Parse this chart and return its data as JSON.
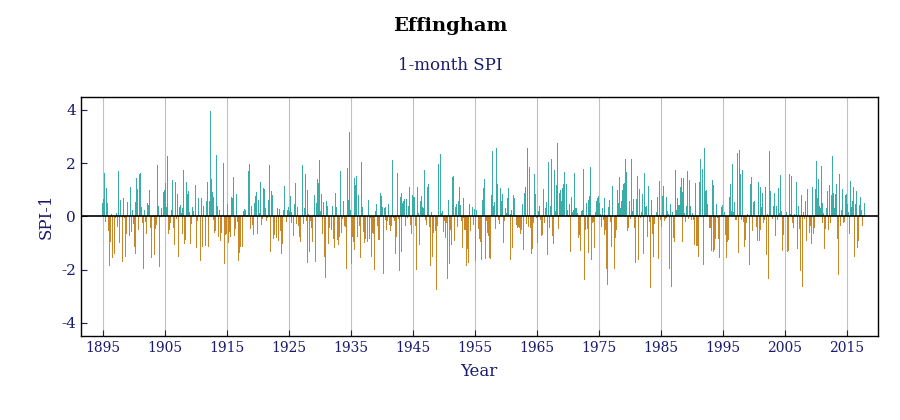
{
  "title": "Effingham",
  "subtitle": "1-month SPI",
  "ylabel": "SPI-1",
  "xlabel": "Year",
  "start_year": 1895,
  "end_year": 2018,
  "ylim": [
    -4.5,
    4.5
  ],
  "yticks": [
    -4,
    -2,
    0,
    2,
    4
  ],
  "xticks": [
    1895,
    1905,
    1915,
    1925,
    1935,
    1945,
    1955,
    1965,
    1975,
    1985,
    1995,
    2005,
    2015
  ],
  "color_positive": "#3aada8",
  "color_negative": "#c8882a",
  "grid_color": "#c0c0c0",
  "zero_line_color": "#000000",
  "background_color": "#ffffff",
  "title_color": "#000000",
  "subtitle_color": "#1a1a6e",
  "axis_label_color": "#1a1a6e",
  "tick_label_color": "#1a1a6e",
  "seed": 42
}
